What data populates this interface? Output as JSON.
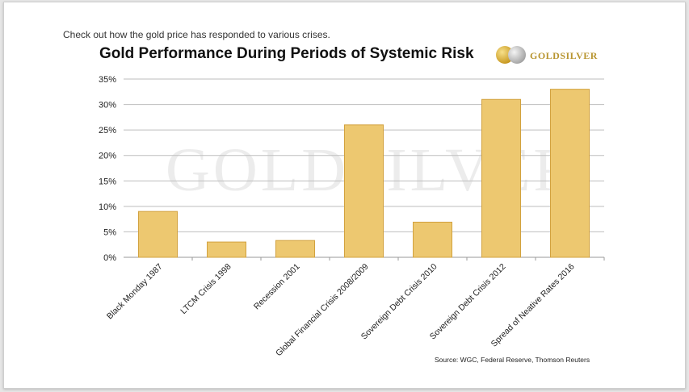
{
  "intro_text": "Check out how the gold price has responded to various crises.",
  "logo": {
    "text": "GOLDSILVER",
    "watermark": "GOLDSILVER"
  },
  "source": "Source: WGC, Federal Reserve, Thomson Reuters",
  "colors": {
    "bar_fill": "#EDC870",
    "bar_stroke": "#D2A23F",
    "grid": "#BEBEBE",
    "brand": "#B89530"
  },
  "chart_data": {
    "type": "bar",
    "title": "Gold Performance During Periods of Systemic Risk",
    "xlabel": "",
    "ylabel": "",
    "ylim": [
      0,
      35
    ],
    "y_ticks": [
      "0%",
      "5%",
      "10%",
      "15%",
      "20%",
      "25%",
      "30%",
      "35%"
    ],
    "grid": true,
    "legend": "none",
    "categories": [
      "Black Monday 1987",
      "LTCM Crisis 1998",
      "Recession 2001",
      "Global Financial Crisis 2008/2009",
      "Sovereign Debt Crisis 2010",
      "Sovereign Debt Crisis 2012",
      "Spread of Neative Rates 2016"
    ],
    "values": [
      9,
      3,
      3.3,
      26,
      6.9,
      31,
      33
    ]
  }
}
